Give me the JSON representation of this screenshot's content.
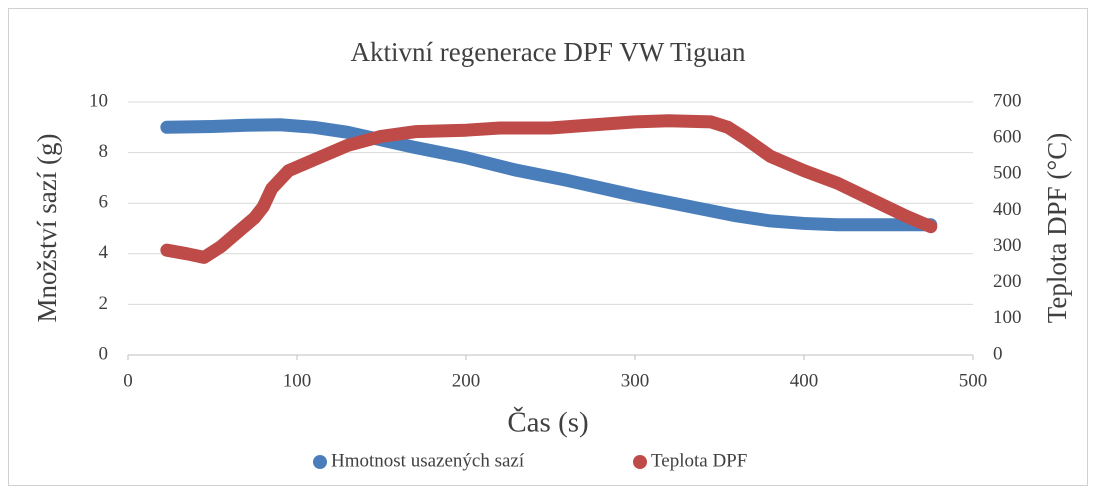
{
  "chart_data": {
    "type": "scatter",
    "title": "Aktivní regenerace DPF VW Tiguan",
    "x_label": "Čas (s)",
    "y_label": "Množství sazí (g)",
    "y2_label": "Teplota DPF (°C)",
    "xlim": [
      0,
      500
    ],
    "xticks": [
      0,
      100,
      200,
      300,
      400,
      500
    ],
    "ylim": [
      0,
      10
    ],
    "yticks": [
      0,
      2,
      4,
      6,
      8,
      10
    ],
    "y2lim": [
      0,
      700
    ],
    "y2ticks": [
      0,
      100,
      200,
      300,
      400,
      500,
      600,
      700
    ],
    "grid": true,
    "legend": "bottom",
    "series": [
      {
        "name": "Hmotnost usazených sazí",
        "color": "#4a7ebb",
        "x": [
          23,
          50,
          70,
          90,
          110,
          130,
          150,
          170,
          200,
          230,
          260,
          300,
          330,
          360,
          380,
          400,
          420,
          450,
          475
        ],
        "values": [
          9.0,
          9.03,
          9.08,
          9.1,
          9.0,
          8.8,
          8.5,
          8.2,
          7.8,
          7.3,
          6.9,
          6.3,
          5.9,
          5.5,
          5.3,
          5.2,
          5.15,
          5.15,
          5.15
        ]
      },
      {
        "name": "Teplota DPF",
        "color": "#be4b48",
        "axis": "y2",
        "x": [
          23,
          35,
          45,
          55,
          65,
          75,
          80,
          85,
          95,
          110,
          130,
          150,
          170,
          200,
          220,
          250,
          270,
          300,
          320,
          345,
          355,
          365,
          380,
          400,
          420,
          440,
          460,
          475
        ],
        "values": [
          290,
          280,
          270,
          300,
          340,
          380,
          410,
          460,
          510,
          540,
          580,
          605,
          618,
          622,
          628,
          628,
          635,
          645,
          648,
          645,
          630,
          600,
          550,
          510,
          475,
          430,
          385,
          355
        ]
      }
    ]
  }
}
